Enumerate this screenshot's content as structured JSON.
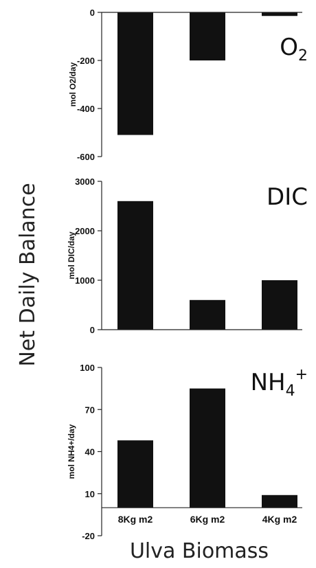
{
  "figure": {
    "ylabel": "Net Daily Balance",
    "xlabel": "Ulva Biomass"
  },
  "chart_data": [
    {
      "type": "bar",
      "title": "O2",
      "categories": [
        "8Kg m2",
        "6Kg m2",
        "4Kg m2"
      ],
      "values": [
        -510,
        -200,
        -15
      ],
      "ylabel": "mol O2/day",
      "ylim": [
        -600,
        0
      ],
      "yticks": [
        0,
        -200,
        -400,
        -600
      ],
      "show_categories": false
    },
    {
      "type": "bar",
      "title": "DIC",
      "categories": [
        "8Kg m2",
        "6Kg m2",
        "4Kg m2"
      ],
      "values": [
        2600,
        600,
        1000
      ],
      "ylabel": "mol DIC/day",
      "ylim": [
        0,
        3000
      ],
      "yticks": [
        0,
        1000,
        2000,
        3000
      ],
      "show_categories": false
    },
    {
      "type": "bar",
      "title": "NH4+",
      "categories": [
        "8Kg m2",
        "6Kg m2",
        "4Kg m2"
      ],
      "values": [
        48,
        85,
        9
      ],
      "ylabel": "mol NH4+/day",
      "ylim": [
        -20,
        100
      ],
      "yticks": [
        100,
        70,
        40,
        10,
        -20
      ],
      "show_categories": true
    }
  ]
}
